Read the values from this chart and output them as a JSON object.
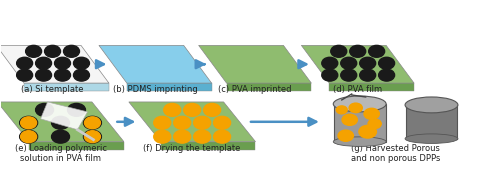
{
  "fig_bg": "#ffffff",
  "arrow_color": "#4a90c4",
  "panel_labels": [
    "(a) Si template",
    "(b) PDMS imprinting",
    "(c) PVA imprinted",
    "(d) PVA film",
    "(e) Loading polymeric\nsolution in PVA film",
    "(f) Drying the template",
    "(g) Harvested Porous\nand non porous DPPs"
  ],
  "si_top": "#f5f5f5",
  "si_side": "#add8e6",
  "pdms_top": "#87ceeb",
  "pdms_side": "#5ab0d0",
  "pva_top": "#8fbc6f",
  "pva_side": "#6a9e4f",
  "black_dot": "#1a1a1a",
  "orange_dot": "#f5a200",
  "cyl_side": "#9a9a9a",
  "cyl_top": "#b8b8b8",
  "cyl_dark_side": "#7a7a7a",
  "cyl_dark_top": "#a0a0a0",
  "label_fontsize": 6.0,
  "label_color": "#222222"
}
